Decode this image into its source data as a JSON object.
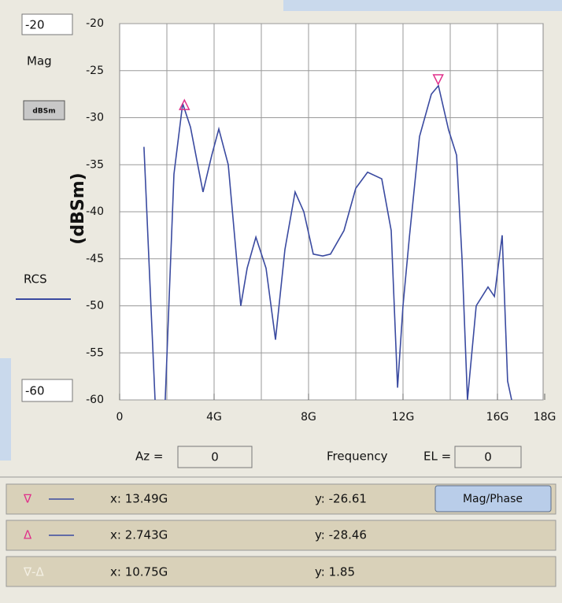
{
  "chart_data": {
    "type": "line",
    "x": [
      1.03,
      1.5,
      1.7,
      1.93,
      2.3,
      2.67,
      3.0,
      3.53,
      3.9,
      4.2,
      4.6,
      5.13,
      5.4,
      5.77,
      6.2,
      6.6,
      7.0,
      7.43,
      7.8,
      8.2,
      8.6,
      8.93,
      9.5,
      10.0,
      10.5,
      11.1,
      11.5,
      11.77,
      12.0,
      12.27,
      12.7,
      13.2,
      13.5,
      13.93,
      14.27,
      14.5,
      14.73,
      15.1,
      15.6,
      15.87,
      16.2,
      16.43,
      16.6
    ],
    "series": [
      {
        "name": "RCS",
        "color": "#3a4aa0",
        "values": [
          -33.1,
          -60,
          -66,
          -60,
          -36,
          -28.5,
          -31,
          -37.9,
          -34,
          -31.2,
          -35,
          -50,
          -46,
          -42.7,
          -46,
          -53.6,
          -44,
          -37.9,
          -40,
          -44.5,
          -44.7,
          -44.5,
          -42,
          -37.5,
          -35.8,
          -36.5,
          -42,
          -58.7,
          -50,
          -42.7,
          -32,
          -27.5,
          -26.6,
          -31.3,
          -34,
          -45,
          -60,
          -50,
          -48,
          -49,
          -42.5,
          -58,
          -60
        ]
      }
    ],
    "ylabel": "(dBSm)",
    "xlabel": "Frequency",
    "mag_label": "Mag",
    "unit_button": "dBSm",
    "xlim": [
      0,
      18
    ],
    "ylim": [
      -60,
      -20
    ],
    "xticks": [
      {
        "value": 0,
        "label": "0"
      },
      {
        "value": 4,
        "label": "4G"
      },
      {
        "value": 8,
        "label": "8G"
      },
      {
        "value": 12,
        "label": "12G"
      },
      {
        "value": 16,
        "label": "16G"
      },
      {
        "value": 18,
        "label": "18G"
      }
    ],
    "xgrid": [
      2,
      4,
      6,
      8,
      10,
      12,
      14,
      16
    ],
    "yticks": [
      -20,
      -25,
      -30,
      -35,
      -40,
      -45,
      -50,
      -55,
      -60
    ],
    "grid": true,
    "markers": [
      {
        "symbol": "∇",
        "color": "#e0308a",
        "x": {
          "value": 13.49,
          "label": "x: 13.49G"
        },
        "y": {
          "value": -26.61,
          "label": "y: -26.61"
        }
      },
      {
        "symbol": "Δ",
        "color": "#e0308a",
        "x": {
          "value": 2.743,
          "label": "x: 2.743G"
        },
        "y": {
          "value": -28.46,
          "label": "y: -28.46"
        }
      }
    ],
    "delta": {
      "symbol": "∇-Δ",
      "x": "x: 10.75G",
      "y": "y: 1.85"
    }
  },
  "controls": {
    "az_label": "Az =",
    "az_value": "0",
    "el_label": "EL =",
    "el_value": "0",
    "mode_button": "Mag/Phase"
  }
}
